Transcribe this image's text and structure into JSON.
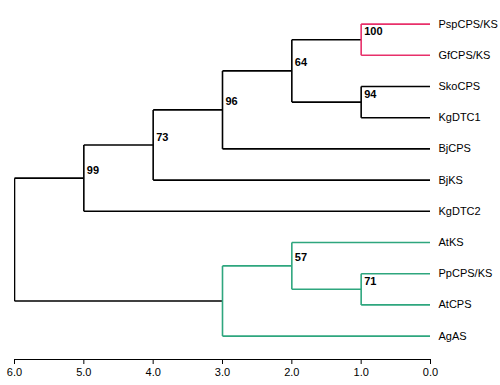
{
  "chart_data": {
    "type": "dendrogram",
    "xlim": [
      6,
      0
    ],
    "xticks": [
      {
        "value": 6,
        "label": "6.0"
      },
      {
        "value": 5,
        "label": "5.0"
      },
      {
        "value": 4,
        "label": "4.0"
      },
      {
        "value": 3,
        "label": "3.0"
      },
      {
        "value": 2,
        "label": "2.0"
      },
      {
        "value": 1,
        "label": "1.0"
      },
      {
        "value": 0,
        "label": "0.0"
      }
    ],
    "tree": {
      "height": 6,
      "color": "#000000",
      "children": [
        {
          "height": 5,
          "bootstrap": 99,
          "children": [
            {
              "height": 4,
              "bootstrap": 73,
              "children": [
                {
                  "height": 3,
                  "bootstrap": 96,
                  "children": [
                    {
                      "height": 2,
                      "bootstrap": 64,
                      "children": [
                        {
                          "height": 1,
                          "bootstrap": 100,
                          "color": "#e8306a",
                          "children": [
                            {
                              "name": "PspCPS/KS",
                              "height": 0
                            },
                            {
                              "name": "GfCPS/KS",
                              "height": 0
                            }
                          ]
                        },
                        {
                          "height": 1,
                          "bootstrap": 94,
                          "children": [
                            {
                              "name": "SkoCPS",
                              "height": 0
                            },
                            {
                              "name": "KgDTC1",
                              "height": 0
                            }
                          ]
                        }
                      ]
                    },
                    {
                      "name": "BjCPS",
                      "height": 0
                    }
                  ]
                },
                {
                  "name": "BjKS",
                  "height": 0
                }
              ]
            },
            {
              "name": "KgDTC2",
              "height": 0
            }
          ]
        },
        {
          "height": 3,
          "color": "#2ea67e",
          "children": [
            {
              "height": 2,
              "bootstrap": 57,
              "children": [
                {
                  "name": "AtKS",
                  "height": 0
                },
                {
                  "height": 1,
                  "bootstrap": 71,
                  "children": [
                    {
                      "name": "PpCPS/KS",
                      "height": 0
                    },
                    {
                      "name": "AtCPS",
                      "height": 0
                    }
                  ]
                }
              ]
            },
            {
              "name": "AgAS",
              "height": 0
            }
          ]
        }
      ]
    }
  }
}
